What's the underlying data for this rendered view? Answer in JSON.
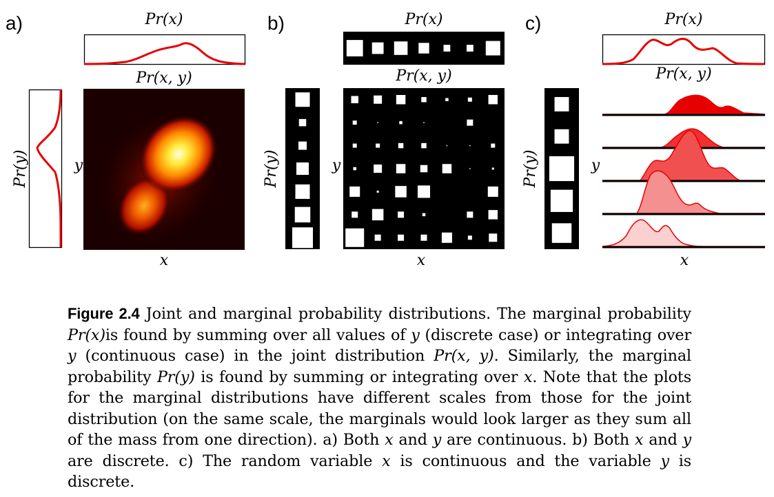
{
  "panels": {
    "a": {
      "letter": "a)",
      "top_label": "Pr(x)",
      "joint_label": "Pr(x, y)",
      "side_label": "Pr(y)",
      "x_label": "x",
      "y_label": "y"
    },
    "b": {
      "letter": "b)",
      "top_label": "Pr(x)",
      "joint_label": "Pr(x, y)",
      "side_label": "Pr(y)",
      "x_label": "x",
      "y_label": "y"
    },
    "c": {
      "letter": "c)",
      "top_label": "Pr(x)",
      "joint_label": "Pr(x, y)",
      "side_label": "Pr(y)",
      "x_label": "x",
      "y_label": "y"
    }
  },
  "discrete": {
    "marginal_x": [
      0.85,
      0.6,
      0.7,
      0.55,
      0.35,
      0.35,
      0.75
    ],
    "marginal_y_top_to_bottom": [
      0.7,
      0.35,
      0.4,
      0.6,
      0.7,
      0.75,
      1.0
    ],
    "joint_rows_top_to_bottom": [
      [
        0.35,
        0.4,
        0.45,
        0.25,
        0.15,
        0.2,
        0.45
      ],
      [
        0.2,
        0.05,
        0.15,
        0.05,
        0.0,
        0.3,
        0.0
      ],
      [
        0.2,
        0.2,
        0.25,
        0.25,
        0.05,
        0.05,
        0.2
      ],
      [
        0.15,
        0.4,
        0.45,
        0.35,
        0.45,
        0.05,
        0.1
      ],
      [
        0.5,
        0.1,
        0.55,
        0.6,
        0.0,
        0.0,
        0.5
      ],
      [
        0.3,
        0.55,
        0.3,
        0.15,
        0.0,
        0.3,
        0.45
      ],
      [
        0.9,
        0.3,
        0.3,
        0.3,
        0.5,
        0.2,
        0.4
      ]
    ]
  },
  "mixed": {
    "marginal_y_top_to_bottom": [
      0.55,
      0.55,
      0.95,
      0.85,
      0.75
    ]
  },
  "colors": {
    "curve": "#e60000",
    "black": "#000000"
  },
  "caption": {
    "figure_label": "Figure 2.4",
    "text_1": " Joint and marginal probability distributions. The marginal probability ",
    "math_prx": "Pr(x)",
    "text_2": "is found by summing over all values of ",
    "math_y": "y",
    "text_3": " (discrete case) or integrating over ",
    "math_y2": "y",
    "text_4": " (continuous case) in the joint distribution ",
    "math_prxy": "Pr(x, y)",
    "text_5": ". Similarly, the marginal probability ",
    "math_pry": "Pr(y)",
    "text_6": " is found by summing or integrating over ",
    "math_x": "x",
    "text_7": ". Note that the plots for the marginal distributions have different scales from those for the joint distribution (on the same scale, the marginals would look larger as they sum all of the mass from one direction). a) Both ",
    "math_x2": "x",
    "text_8": " and ",
    "math_y3": "y",
    "text_9": " are continuous. b) Both ",
    "math_x3": "x",
    "text_10": " and ",
    "math_y4": "y",
    "text_11": " are discrete. c) The random variable ",
    "math_x4": "x",
    "text_12": " is continuous and the variable ",
    "math_y5": "y",
    "text_13": " is discrete."
  }
}
